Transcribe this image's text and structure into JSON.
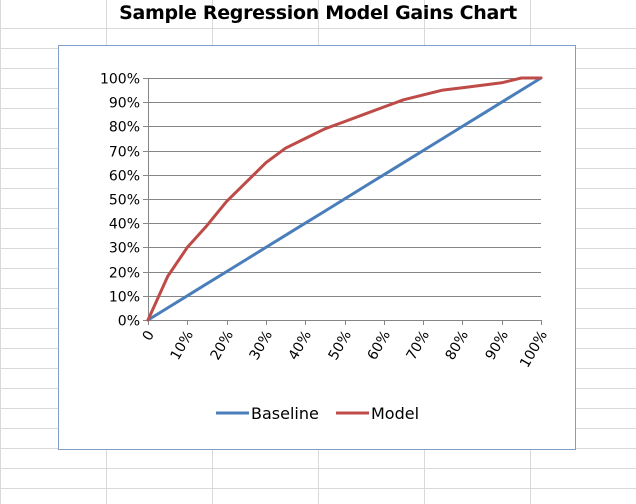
{
  "chart_data": {
    "type": "line",
    "title": "Sample Regression Model Gains Chart",
    "x_tick_labels": [
      "0",
      "10%",
      "20%",
      "30%",
      "40%",
      "50%",
      "60%",
      "70%",
      "80%",
      "90%",
      "100%"
    ],
    "y_tick_labels": [
      "0%",
      "10%",
      "20%",
      "30%",
      "40%",
      "50%",
      "60%",
      "70%",
      "80%",
      "90%",
      "100%"
    ],
    "xlim": [
      0,
      100
    ],
    "ylim": [
      0,
      100
    ],
    "grid": "horizontal",
    "legend_position": "bottom",
    "series": [
      {
        "name": "Baseline",
        "color": "#4a7ebb",
        "x": [
          0,
          5,
          10,
          15,
          20,
          25,
          30,
          35,
          40,
          45,
          50,
          55,
          60,
          65,
          70,
          75,
          80,
          85,
          90,
          95,
          100
        ],
        "y": [
          0,
          5,
          10,
          15,
          20,
          25,
          30,
          35,
          40,
          45,
          50,
          55,
          60,
          65,
          70,
          75,
          80,
          85,
          90,
          95,
          100
        ]
      },
      {
        "name": "Model",
        "color": "#be4b48",
        "x": [
          0,
          5,
          10,
          15,
          20,
          25,
          30,
          35,
          40,
          45,
          50,
          55,
          60,
          65,
          70,
          75,
          80,
          85,
          90,
          95,
          100
        ],
        "y": [
          0,
          18,
          30,
          39,
          49,
          57,
          65,
          71,
          75,
          79,
          82,
          85,
          88,
          91,
          93,
          95,
          96,
          97,
          98,
          100,
          100
        ]
      }
    ]
  }
}
